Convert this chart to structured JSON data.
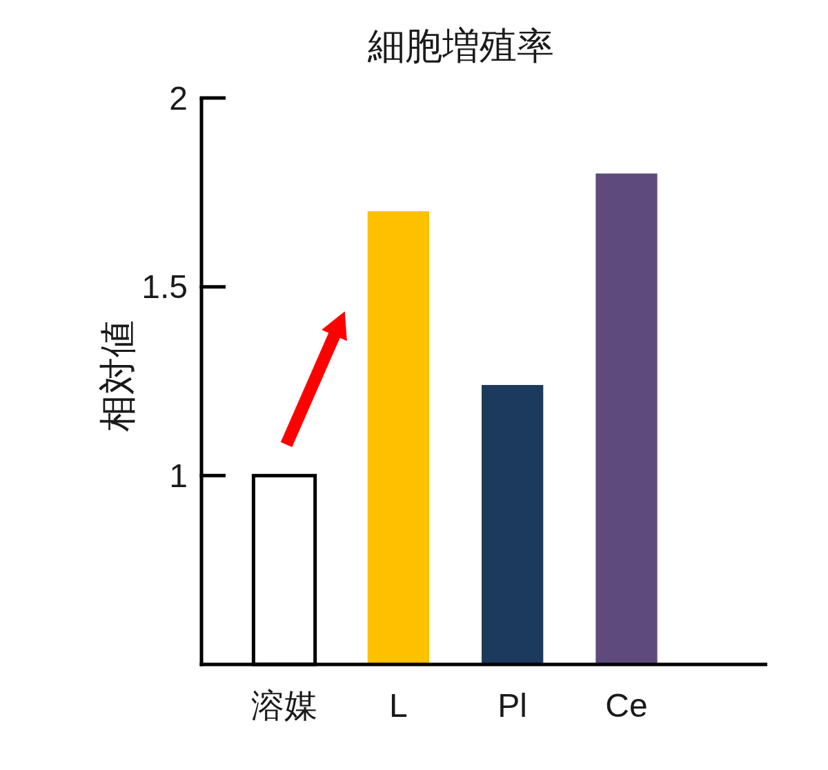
{
  "chart_data": {
    "type": "bar",
    "title": "細胞増殖率",
    "ylabel": "相対値",
    "categories": [
      "溶媒",
      "L",
      "Pl",
      "Ce"
    ],
    "values": [
      1,
      1.7,
      1.24,
      1.8
    ],
    "colors": [
      "#ffffff",
      "#ffc000",
      "#1b3a5e",
      "#5e4a7c"
    ],
    "ylim": [
      0.5,
      2
    ],
    "yticks": [
      1,
      1.5,
      2
    ]
  }
}
